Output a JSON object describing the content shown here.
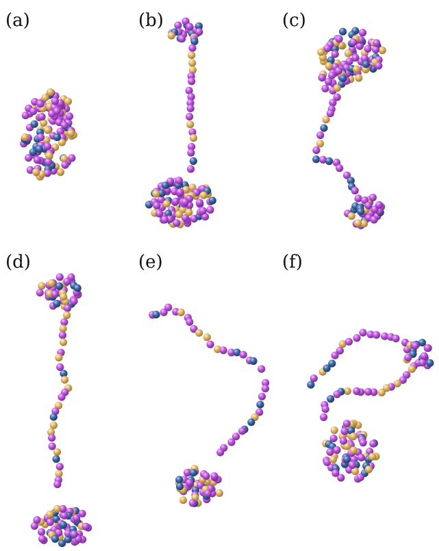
{
  "panels": [
    {
      "label": "(a)"
    },
    {
      "label": "(b)"
    },
    {
      "label": "(c)"
    },
    {
      "label": "(d)"
    },
    {
      "label": "(e)"
    },
    {
      "label": "(f)"
    }
  ],
  "colors": {
    "magenta": "#c05ae0",
    "gold": "#e3b86a",
    "blue": "#3e6aa8",
    "background": "#ffffff"
  }
}
